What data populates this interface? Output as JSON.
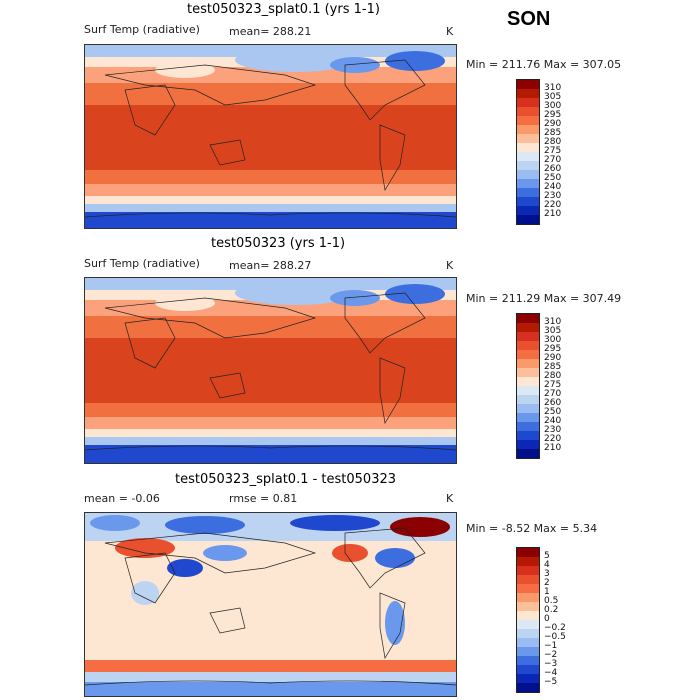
{
  "season": "SON",
  "panels": [
    {
      "title": "test050323_splat0.1 (yrs 1-1)",
      "variable": "Surf Temp (radiative)",
      "stat": "mean= 288.21",
      "units": "K",
      "minmax": "Min = 211.76 Max = 307.05",
      "colorbar": {
        "labels": [
          "310",
          "305",
          "300",
          "295",
          "290",
          "285",
          "280",
          "275",
          "270",
          "260",
          "250",
          "240",
          "230",
          "220",
          "210"
        ],
        "colors": [
          "#8b0000",
          "#b51a00",
          "#d7301f",
          "#e8502e",
          "#f46d43",
          "#fa9a6a",
          "#fcbf9a",
          "#fde6d2",
          "#dde8f7",
          "#bcd3f2",
          "#9bbcf0",
          "#6a98ec",
          "#3c6ee0",
          "#1f48cf",
          "#0a27b5",
          "#00108c"
        ]
      }
    },
    {
      "title": "test050323 (yrs 1-1)",
      "variable": "Surf Temp (radiative)",
      "stat": "mean= 288.27",
      "units": "K",
      "minmax": "Min = 211.29 Max = 307.49",
      "colorbar": {
        "labels": [
          "310",
          "305",
          "300",
          "295",
          "290",
          "285",
          "280",
          "275",
          "270",
          "260",
          "250",
          "240",
          "230",
          "220",
          "210"
        ],
        "colors": [
          "#8b0000",
          "#b51a00",
          "#d7301f",
          "#e8502e",
          "#f46d43",
          "#fa9a6a",
          "#fcbf9a",
          "#fde6d2",
          "#dde8f7",
          "#bcd3f2",
          "#9bbcf0",
          "#6a98ec",
          "#3c6ee0",
          "#1f48cf",
          "#0a27b5",
          "#00108c"
        ]
      }
    },
    {
      "title": "test050323_splat0.1 - test050323",
      "stat": "mean =   -0.06",
      "stat2": "rmse =    0.81",
      "units": "K",
      "minmax": "Min =  -8.52 Max =    5.34",
      "colorbar": {
        "labels": [
          "5",
          "4",
          "3",
          "2",
          "1",
          "0.5",
          "0.2",
          "0",
          "−0.2",
          "−0.5",
          "−1",
          "−2",
          "−3",
          "−4",
          "−5"
        ],
        "colors": [
          "#8b0000",
          "#b51a00",
          "#d7301f",
          "#e8502e",
          "#f46d43",
          "#fa9a6a",
          "#fcbf9a",
          "#fde6d2",
          "#dde8f7",
          "#bcd3f2",
          "#9bbcf0",
          "#6a98ec",
          "#3c6ee0",
          "#1f48cf",
          "#0a27b5",
          "#00108c"
        ]
      }
    }
  ],
  "map_colors": {
    "ocean_warm": "#d9441f",
    "mid_warm": "#f07040",
    "temperate": "#fba27c",
    "cool": "#fde6d2",
    "cold": "#a9c7f0",
    "polar": "#3c6ee0",
    "deep_polar": "#1f48cf",
    "diff_zero": "#fde6d2"
  }
}
